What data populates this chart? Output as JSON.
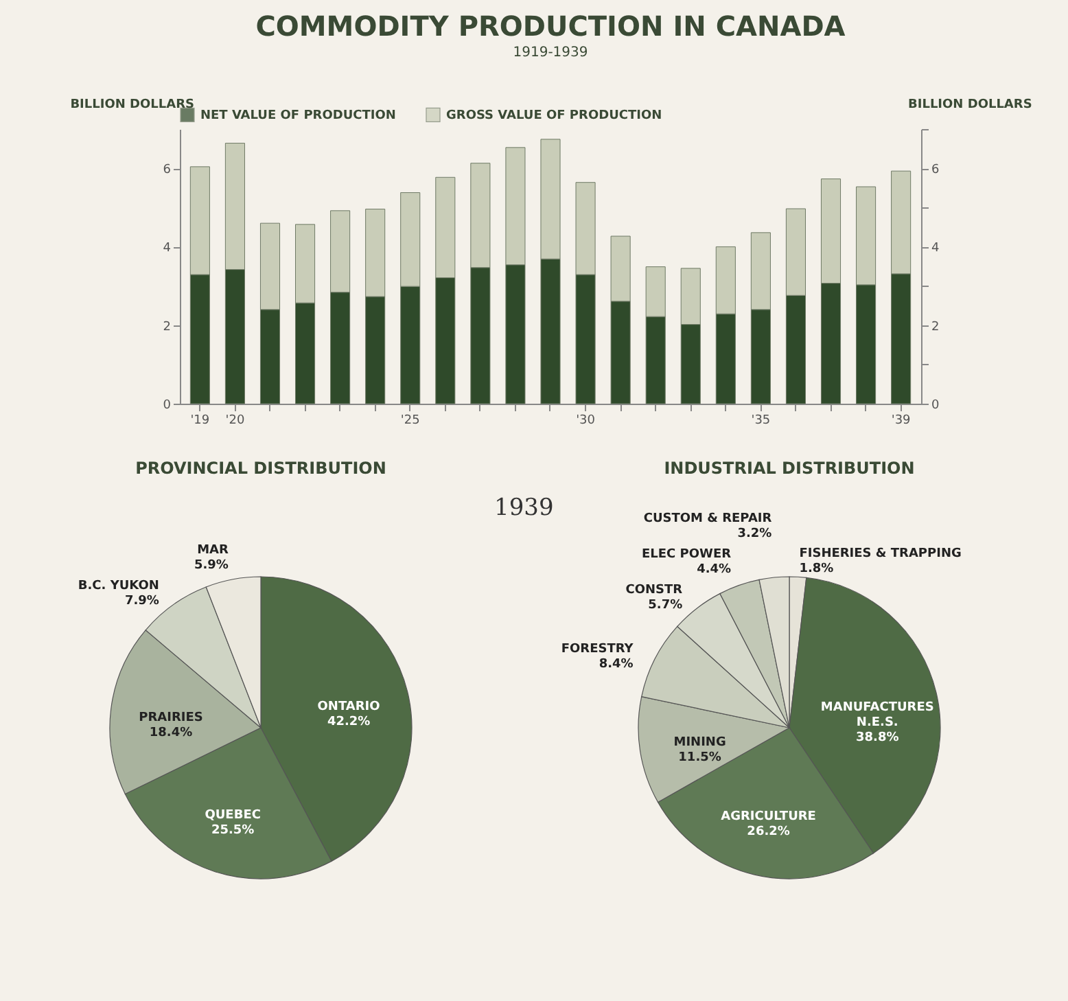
{
  "chart_data": [
    {
      "type": "bar",
      "title": "COMMODITY PRODUCTION IN CANADA",
      "subtitle": "1919-1939",
      "ylabel": "BILLION DOLLARS",
      "y2label": "BILLION DOLLARS",
      "stacked": true,
      "legend": "top",
      "categories": [
        "'19",
        "'20",
        null,
        null,
        null,
        null,
        "'25",
        null,
        null,
        null,
        null,
        "'30",
        null,
        null,
        null,
        null,
        "'35",
        null,
        null,
        null,
        "'39"
      ],
      "series": [
        {
          "name": "NET VALUE OF PRODUCTION",
          "color": "#2f4a2a",
          "values": [
            3.29,
            3.42,
            2.4,
            2.57,
            2.84,
            2.73,
            2.99,
            3.21,
            3.47,
            3.54,
            3.69,
            3.29,
            2.61,
            2.22,
            2.02,
            2.29,
            2.4,
            2.76,
            3.07,
            3.03,
            3.31
          ]
        },
        {
          "name": "GROSS VALUE OF PRODUCTION",
          "color": "#c9cdb8",
          "values": [
            2.75,
            3.22,
            2.2,
            2.0,
            2.08,
            2.23,
            2.39,
            2.56,
            2.66,
            2.99,
            3.05,
            2.35,
            1.66,
            1.27,
            1.43,
            1.71,
            1.96,
            2.21,
            2.66,
            2.5,
            2.62
          ]
        }
      ],
      "ylim": [
        0,
        7
      ],
      "yticks": [
        0,
        {
          "value": 1,
          "label": null
        },
        2,
        {
          "value": 3,
          "label": null
        },
        4,
        {
          "value": 5,
          "label": null
        },
        6,
        {
          "value": 7,
          "label": null
        }
      ],
      "y2lim": [
        0,
        7
      ],
      "y2ticks": [
        0,
        {
          "value": 1,
          "label": null
        },
        2,
        {
          "value": 3,
          "label": null
        },
        4,
        {
          "value": 5,
          "label": null
        },
        6,
        {
          "value": 7,
          "label": null
        }
      ]
    },
    {
      "type": "pie",
      "title": "PROVINCIAL DISTRIBUTION",
      "annotations": [
        "1939"
      ],
      "categories": [
        "ONTARIO",
        "QUEBEC",
        "PRAIRIES",
        "B.C. YUKON",
        "MAR"
      ],
      "values": [
        42.2,
        25.5,
        18.4,
        7.9,
        5.9
      ],
      "value_labels": [
        "42.2%",
        "25.5%",
        "18.4%",
        "7.9%",
        "5.9%"
      ],
      "colors": [
        "#4f6b45",
        "#5f7a55",
        "#a9b39e",
        "#cfd4c4",
        "#ebe8de"
      ]
    },
    {
      "type": "pie",
      "title": "INDUSTRIAL DISTRIBUTION",
      "categories": [
        "FISHERIES & TRAPPING",
        "MANUFACTURES N.E.S.",
        "AGRICULTURE",
        "MINING",
        "FORESTRY",
        "CONSTR",
        "ELEC POWER",
        "CUSTOM & REPAIR"
      ],
      "values": [
        1.8,
        38.8,
        26.2,
        11.5,
        8.4,
        5.7,
        4.4,
        3.2
      ],
      "value_labels": [
        "1.8%",
        "38.8%",
        "26.2%",
        "11.5%",
        "8.4%",
        "5.7%",
        "4.4%",
        "3.2%"
      ],
      "colors": [
        "#e6e3d8",
        "#4f6b45",
        "#5f7a55",
        "#b6bdaa",
        "#c9cebd",
        "#d6d9cb",
        "#c2c8b6",
        "#e0dfd3"
      ]
    }
  ]
}
